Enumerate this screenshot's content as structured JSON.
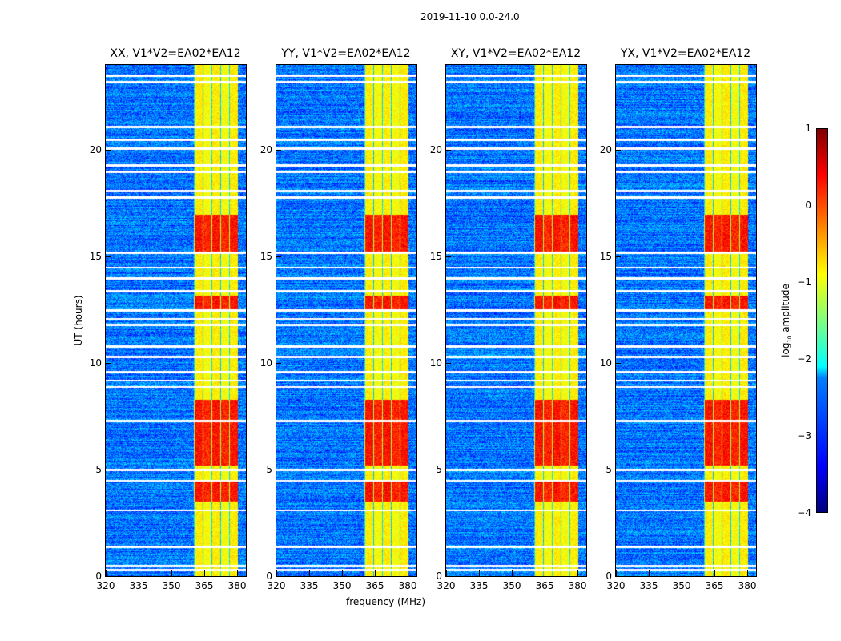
{
  "suptitle": "2019-11-10 0.0-24.0",
  "chart_data": {
    "type": "heatmap",
    "title": "2019-11-10 0.0-24.0",
    "xlabel": "frequency (MHz)",
    "ylabel": "UT (hours)",
    "xlim": [
      320,
      384
    ],
    "ylim": [
      0,
      24
    ],
    "xticks": [
      "320",
      "335",
      "350",
      "365",
      "380"
    ],
    "yticks": [
      "0",
      "5",
      "10",
      "15",
      "20"
    ],
    "panels": [
      {
        "title": "XX, V1*V2=EA02*EA12"
      },
      {
        "title": "YY, V1*V2=EA02*EA12"
      },
      {
        "title": "XY, V1*V2=EA02*EA12"
      },
      {
        "title": "YX, V1*V2=EA02*EA12"
      }
    ],
    "background_log_amplitude": -3,
    "rfi_band_mhz": [
      360,
      380
    ],
    "rfi_band_log_amplitude": -1,
    "strong_rfi_ut_ranges": [
      [
        3.5,
        4.5
      ],
      [
        5.2,
        8.3
      ],
      [
        12.5,
        13.2
      ],
      [
        15.2,
        17.0
      ]
    ],
    "flagged_ut_hours": [
      0.3,
      0.5,
      1.4,
      3.1,
      4.5,
      5.0,
      7.3,
      8.9,
      9.2,
      9.6,
      10.3,
      10.8,
      11.8,
      12.1,
      12.5,
      13.4,
      14.0,
      14.5,
      15.2,
      17.8,
      18.1,
      19.0,
      19.3,
      20.1,
      20.5,
      21.1,
      23.2,
      23.5
    ],
    "colorbar": {
      "label": "log10 amplitude",
      "label_main": "log",
      "label_sub": "10",
      "label_rest": " amplitude",
      "range": [
        -4,
        1
      ],
      "ticks": [
        "1",
        "0",
        "−1",
        "−2",
        "−3",
        "−4"
      ],
      "colormap": "jet"
    }
  }
}
